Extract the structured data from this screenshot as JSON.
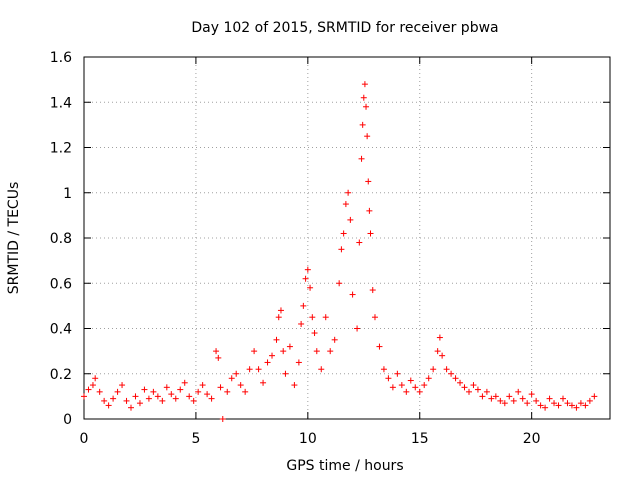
{
  "chart_data": {
    "type": "scatter",
    "title": "Day 102 of 2015, SRMTID for receiver pbwa",
    "xlabel": "GPS time / hours",
    "ylabel": "SRMTID / TECUs",
    "xlim": [
      0,
      23.5
    ],
    "ylim": [
      0,
      1.6
    ],
    "x_ticks": [
      0,
      5,
      10,
      15,
      20
    ],
    "x_tick_labels": [
      "0",
      "5",
      "10",
      "15",
      "20"
    ],
    "y_ticks": [
      0,
      0.2,
      0.4,
      0.6,
      0.8,
      1.0,
      1.2,
      1.4,
      1.6
    ],
    "y_tick_labels": [
      "0",
      "0.2",
      "0.4",
      "0.6",
      "0.8",
      "1",
      "1.2",
      "1.4",
      "1.6"
    ],
    "grid": true,
    "series": [
      {
        "name": "SRMTID",
        "marker": "plus",
        "color": "#ff0000",
        "points": [
          [
            0.0,
            0.1
          ],
          [
            0.2,
            0.13
          ],
          [
            0.4,
            0.15
          ],
          [
            0.5,
            0.18
          ],
          [
            0.7,
            0.12
          ],
          [
            0.9,
            0.08
          ],
          [
            1.1,
            0.06
          ],
          [
            1.3,
            0.09
          ],
          [
            1.5,
            0.12
          ],
          [
            1.7,
            0.15
          ],
          [
            1.9,
            0.08
          ],
          [
            2.1,
            0.05
          ],
          [
            2.3,
            0.1
          ],
          [
            2.5,
            0.07
          ],
          [
            2.7,
            0.13
          ],
          [
            2.9,
            0.09
          ],
          [
            3.1,
            0.12
          ],
          [
            3.3,
            0.1
          ],
          [
            3.5,
            0.08
          ],
          [
            3.7,
            0.14
          ],
          [
            3.9,
            0.11
          ],
          [
            4.1,
            0.09
          ],
          [
            4.3,
            0.13
          ],
          [
            4.5,
            0.16
          ],
          [
            4.7,
            0.1
          ],
          [
            4.9,
            0.08
          ],
          [
            5.1,
            0.12
          ],
          [
            5.3,
            0.15
          ],
          [
            5.5,
            0.11
          ],
          [
            5.7,
            0.09
          ],
          [
            5.9,
            0.3
          ],
          [
            6.0,
            0.27
          ],
          [
            6.1,
            0.14
          ],
          [
            6.2,
            0.0
          ],
          [
            6.4,
            0.12
          ],
          [
            6.6,
            0.18
          ],
          [
            6.8,
            0.2
          ],
          [
            7.0,
            0.15
          ],
          [
            7.2,
            0.12
          ],
          [
            7.4,
            0.22
          ],
          [
            7.6,
            0.3
          ],
          [
            7.8,
            0.22
          ],
          [
            8.0,
            0.16
          ],
          [
            8.2,
            0.25
          ],
          [
            8.4,
            0.28
          ],
          [
            8.6,
            0.35
          ],
          [
            8.7,
            0.45
          ],
          [
            8.8,
            0.48
          ],
          [
            8.9,
            0.3
          ],
          [
            9.0,
            0.2
          ],
          [
            9.2,
            0.32
          ],
          [
            9.4,
            0.15
          ],
          [
            9.6,
            0.25
          ],
          [
            9.7,
            0.42
          ],
          [
            9.8,
            0.5
          ],
          [
            9.9,
            0.62
          ],
          [
            10.0,
            0.66
          ],
          [
            10.1,
            0.58
          ],
          [
            10.2,
            0.45
          ],
          [
            10.3,
            0.38
          ],
          [
            10.4,
            0.3
          ],
          [
            10.6,
            0.22
          ],
          [
            10.8,
            0.45
          ],
          [
            11.0,
            0.3
          ],
          [
            11.2,
            0.35
          ],
          [
            11.4,
            0.6
          ],
          [
            11.5,
            0.75
          ],
          [
            11.6,
            0.82
          ],
          [
            11.7,
            0.95
          ],
          [
            11.8,
            1.0
          ],
          [
            11.9,
            0.88
          ],
          [
            12.0,
            0.55
          ],
          [
            12.2,
            0.4
          ],
          [
            12.3,
            0.78
          ],
          [
            12.4,
            1.15
          ],
          [
            12.45,
            1.3
          ],
          [
            12.5,
            1.42
          ],
          [
            12.55,
            1.48
          ],
          [
            12.6,
            1.38
          ],
          [
            12.65,
            1.25
          ],
          [
            12.7,
            1.05
          ],
          [
            12.75,
            0.92
          ],
          [
            12.8,
            0.82
          ],
          [
            12.9,
            0.57
          ],
          [
            13.0,
            0.45
          ],
          [
            13.2,
            0.32
          ],
          [
            13.4,
            0.22
          ],
          [
            13.6,
            0.18
          ],
          [
            13.8,
            0.14
          ],
          [
            14.0,
            0.2
          ],
          [
            14.2,
            0.15
          ],
          [
            14.4,
            0.12
          ],
          [
            14.6,
            0.17
          ],
          [
            14.8,
            0.14
          ],
          [
            15.0,
            0.12
          ],
          [
            15.2,
            0.15
          ],
          [
            15.4,
            0.18
          ],
          [
            15.6,
            0.22
          ],
          [
            15.8,
            0.3
          ],
          [
            15.9,
            0.36
          ],
          [
            16.0,
            0.28
          ],
          [
            16.2,
            0.22
          ],
          [
            16.4,
            0.2
          ],
          [
            16.6,
            0.18
          ],
          [
            16.8,
            0.16
          ],
          [
            17.0,
            0.14
          ],
          [
            17.2,
            0.12
          ],
          [
            17.4,
            0.15
          ],
          [
            17.6,
            0.13
          ],
          [
            17.8,
            0.1
          ],
          [
            18.0,
            0.12
          ],
          [
            18.2,
            0.09
          ],
          [
            18.4,
            0.1
          ],
          [
            18.6,
            0.08
          ],
          [
            18.8,
            0.07
          ],
          [
            19.0,
            0.1
          ],
          [
            19.2,
            0.08
          ],
          [
            19.4,
            0.12
          ],
          [
            19.6,
            0.09
          ],
          [
            19.8,
            0.07
          ],
          [
            20.0,
            0.11
          ],
          [
            20.2,
            0.08
          ],
          [
            20.4,
            0.06
          ],
          [
            20.6,
            0.05
          ],
          [
            20.8,
            0.09
          ],
          [
            21.0,
            0.07
          ],
          [
            21.2,
            0.06
          ],
          [
            21.4,
            0.09
          ],
          [
            21.6,
            0.07
          ],
          [
            21.8,
            0.06
          ],
          [
            22.0,
            0.05
          ],
          [
            22.2,
            0.07
          ],
          [
            22.4,
            0.06
          ],
          [
            22.6,
            0.08
          ],
          [
            22.8,
            0.1
          ]
        ]
      }
    ]
  }
}
